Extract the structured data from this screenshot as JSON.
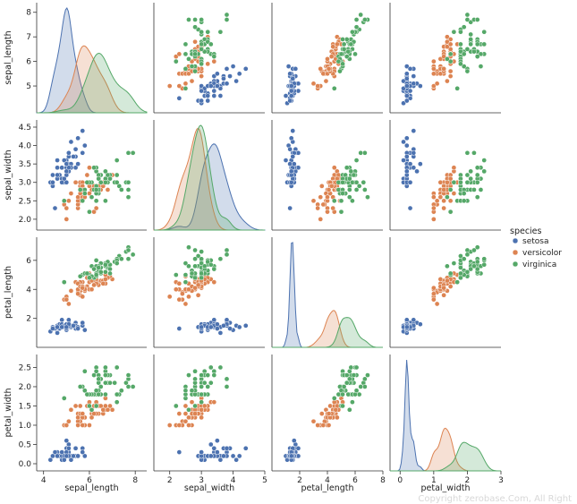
{
  "watermark": "Copyright zerobase.Com, All Right",
  "chart_data": {
    "type": "scatter",
    "variables": [
      "sepal_length",
      "sepal_width",
      "petal_length",
      "petal_width"
    ],
    "ranges": {
      "sepal_length": [
        4.2,
        8.1
      ],
      "sepal_width": [
        1.9,
        4.5
      ],
      "petal_length": [
        0.5,
        7.1
      ],
      "petal_width": [
        0.0,
        2.65
      ]
    },
    "ticks": {
      "sepal_length": [
        4,
        6,
        8
      ],
      "sepal_width": [
        2,
        3,
        4,
        5
      ],
      "petal_length": [
        2,
        4,
        6,
        8
      ],
      "petal_width": [
        0,
        1,
        2,
        3
      ]
    },
    "yticks": {
      "sepal_length": [
        5,
        6,
        7,
        8
      ],
      "sepal_width": [
        2.0,
        2.5,
        3.0,
        3.5,
        4.0,
        4.5
      ],
      "petal_length": [
        2,
        4,
        6
      ],
      "petal_width": [
        0.0,
        0.5,
        1.0,
        1.5,
        2.0,
        2.5
      ]
    },
    "xlim_bottom": {
      "sepal_length": [
        3.7,
        8.5
      ],
      "sepal_width": [
        1.5,
        5.0
      ],
      "petal_length": [
        0.0,
        8.0
      ],
      "petal_width": [
        -0.3,
        3.0
      ]
    },
    "diagonal": "kde",
    "legend": {
      "title": "species",
      "position": "right",
      "entries": [
        {
          "label": "setosa",
          "color": "#4c72b0"
        },
        {
          "label": "versicolor",
          "color": "#dd8452"
        },
        {
          "label": "virginica",
          "color": "#55a868"
        }
      ]
    },
    "series": [
      {
        "name": "setosa",
        "color": "#4c72b0",
        "points": [
          [
            5.1,
            3.5,
            1.4,
            0.2
          ],
          [
            4.9,
            3.0,
            1.4,
            0.2
          ],
          [
            4.7,
            3.2,
            1.3,
            0.2
          ],
          [
            4.6,
            3.1,
            1.5,
            0.2
          ],
          [
            5.0,
            3.6,
            1.4,
            0.2
          ],
          [
            5.4,
            3.9,
            1.7,
            0.4
          ],
          [
            4.6,
            3.4,
            1.4,
            0.3
          ],
          [
            5.0,
            3.4,
            1.5,
            0.2
          ],
          [
            4.4,
            2.9,
            1.4,
            0.2
          ],
          [
            4.9,
            3.1,
            1.5,
            0.1
          ],
          [
            5.4,
            3.7,
            1.5,
            0.2
          ],
          [
            4.8,
            3.4,
            1.6,
            0.2
          ],
          [
            4.8,
            3.0,
            1.4,
            0.1
          ],
          [
            4.3,
            3.0,
            1.1,
            0.1
          ],
          [
            5.8,
            4.0,
            1.2,
            0.2
          ],
          [
            5.7,
            4.4,
            1.5,
            0.4
          ],
          [
            5.4,
            3.9,
            1.3,
            0.4
          ],
          [
            5.1,
            3.5,
            1.4,
            0.3
          ],
          [
            5.7,
            3.8,
            1.7,
            0.3
          ],
          [
            5.1,
            3.8,
            1.5,
            0.3
          ],
          [
            5.4,
            3.4,
            1.7,
            0.2
          ],
          [
            5.1,
            3.7,
            1.5,
            0.4
          ],
          [
            4.6,
            3.6,
            1.0,
            0.2
          ],
          [
            5.1,
            3.3,
            1.7,
            0.5
          ],
          [
            4.8,
            3.4,
            1.9,
            0.2
          ],
          [
            5.0,
            3.0,
            1.6,
            0.2
          ],
          [
            5.0,
            3.4,
            1.6,
            0.4
          ],
          [
            5.2,
            3.5,
            1.5,
            0.2
          ],
          [
            5.2,
            3.4,
            1.4,
            0.2
          ],
          [
            4.7,
            3.2,
            1.6,
            0.2
          ],
          [
            4.8,
            3.1,
            1.6,
            0.2
          ],
          [
            5.4,
            3.4,
            1.5,
            0.4
          ],
          [
            5.2,
            4.1,
            1.5,
            0.1
          ],
          [
            5.5,
            4.2,
            1.4,
            0.2
          ],
          [
            4.9,
            3.1,
            1.5,
            0.2
          ],
          [
            5.0,
            3.2,
            1.2,
            0.2
          ],
          [
            5.5,
            3.5,
            1.3,
            0.2
          ],
          [
            4.9,
            3.6,
            1.4,
            0.1
          ],
          [
            4.4,
            3.0,
            1.3,
            0.2
          ],
          [
            5.1,
            3.4,
            1.5,
            0.2
          ],
          [
            5.0,
            3.5,
            1.3,
            0.3
          ],
          [
            4.5,
            2.3,
            1.3,
            0.3
          ],
          [
            4.4,
            3.2,
            1.3,
            0.2
          ],
          [
            5.0,
            3.5,
            1.6,
            0.6
          ],
          [
            5.1,
            3.8,
            1.9,
            0.4
          ],
          [
            4.8,
            3.0,
            1.4,
            0.3
          ],
          [
            5.1,
            3.8,
            1.6,
            0.2
          ],
          [
            4.6,
            3.2,
            1.4,
            0.2
          ],
          [
            5.3,
            3.7,
            1.5,
            0.2
          ],
          [
            5.0,
            3.3,
            1.4,
            0.2
          ]
        ]
      },
      {
        "name": "versicolor",
        "color": "#dd8452",
        "points": [
          [
            7.0,
            3.2,
            4.7,
            1.4
          ],
          [
            6.4,
            3.2,
            4.5,
            1.5
          ],
          [
            6.9,
            3.1,
            4.9,
            1.5
          ],
          [
            5.5,
            2.3,
            4.0,
            1.3
          ],
          [
            6.5,
            2.8,
            4.6,
            1.5
          ],
          [
            5.7,
            2.8,
            4.5,
            1.3
          ],
          [
            6.3,
            3.3,
            4.7,
            1.6
          ],
          [
            4.9,
            2.4,
            3.3,
            1.0
          ],
          [
            6.6,
            2.9,
            4.6,
            1.3
          ],
          [
            5.2,
            2.7,
            3.9,
            1.4
          ],
          [
            5.0,
            2.0,
            3.5,
            1.0
          ],
          [
            5.9,
            3.0,
            4.2,
            1.5
          ],
          [
            6.0,
            2.2,
            4.0,
            1.0
          ],
          [
            6.1,
            2.9,
            4.7,
            1.4
          ],
          [
            5.6,
            2.9,
            3.6,
            1.3
          ],
          [
            6.7,
            3.1,
            4.4,
            1.4
          ],
          [
            5.6,
            3.0,
            4.5,
            1.5
          ],
          [
            5.8,
            2.7,
            4.1,
            1.0
          ],
          [
            6.2,
            2.2,
            4.5,
            1.5
          ],
          [
            5.6,
            2.5,
            3.9,
            1.1
          ],
          [
            5.9,
            3.2,
            4.8,
            1.8
          ],
          [
            6.1,
            2.8,
            4.0,
            1.3
          ],
          [
            6.3,
            2.5,
            4.9,
            1.5
          ],
          [
            6.1,
            2.8,
            4.7,
            1.2
          ],
          [
            6.4,
            2.9,
            4.3,
            1.3
          ],
          [
            6.6,
            3.0,
            4.4,
            1.4
          ],
          [
            6.8,
            2.8,
            4.8,
            1.4
          ],
          [
            6.7,
            3.0,
            5.0,
            1.7
          ],
          [
            6.0,
            2.9,
            4.5,
            1.5
          ],
          [
            5.7,
            2.6,
            3.5,
            1.0
          ],
          [
            5.5,
            2.4,
            3.8,
            1.1
          ],
          [
            5.5,
            2.4,
            3.7,
            1.0
          ],
          [
            5.8,
            2.7,
            3.9,
            1.2
          ],
          [
            6.0,
            2.7,
            5.1,
            1.6
          ],
          [
            5.4,
            3.0,
            4.5,
            1.5
          ],
          [
            6.0,
            3.4,
            4.5,
            1.6
          ],
          [
            6.7,
            3.1,
            4.7,
            1.5
          ],
          [
            6.3,
            2.3,
            4.4,
            1.3
          ],
          [
            5.6,
            3.0,
            4.1,
            1.3
          ],
          [
            5.5,
            2.5,
            4.0,
            1.3
          ],
          [
            5.5,
            2.6,
            4.4,
            1.2
          ],
          [
            6.1,
            3.0,
            4.6,
            1.4
          ],
          [
            5.8,
            2.6,
            4.0,
            1.2
          ],
          [
            5.0,
            2.3,
            3.3,
            1.0
          ],
          [
            5.6,
            2.7,
            4.2,
            1.3
          ],
          [
            5.7,
            3.0,
            4.2,
            1.2
          ],
          [
            5.7,
            2.9,
            4.2,
            1.3
          ],
          [
            6.2,
            2.9,
            4.3,
            1.3
          ],
          [
            5.1,
            2.5,
            3.0,
            1.1
          ],
          [
            5.7,
            2.8,
            4.1,
            1.3
          ]
        ]
      },
      {
        "name": "virginica",
        "color": "#55a868",
        "points": [
          [
            6.3,
            3.3,
            6.0,
            2.5
          ],
          [
            5.8,
            2.7,
            5.1,
            1.9
          ],
          [
            7.1,
            3.0,
            5.9,
            2.1
          ],
          [
            6.3,
            2.9,
            5.6,
            1.8
          ],
          [
            6.5,
            3.0,
            5.8,
            2.2
          ],
          [
            7.6,
            3.0,
            6.6,
            2.1
          ],
          [
            4.9,
            2.5,
            4.5,
            1.7
          ],
          [
            7.3,
            2.9,
            6.3,
            1.8
          ],
          [
            6.7,
            2.5,
            5.8,
            1.8
          ],
          [
            7.2,
            3.6,
            6.1,
            2.5
          ],
          [
            6.5,
            3.2,
            5.1,
            2.0
          ],
          [
            6.4,
            2.7,
            5.3,
            1.9
          ],
          [
            6.8,
            3.0,
            5.5,
            2.1
          ],
          [
            5.7,
            2.5,
            5.0,
            2.0
          ],
          [
            5.8,
            2.8,
            5.1,
            2.4
          ],
          [
            6.4,
            3.2,
            5.3,
            2.3
          ],
          [
            6.5,
            3.0,
            5.5,
            1.8
          ],
          [
            7.7,
            3.8,
            6.7,
            2.2
          ],
          [
            7.7,
            2.6,
            6.9,
            2.3
          ],
          [
            6.0,
            2.2,
            5.0,
            1.5
          ],
          [
            6.9,
            3.2,
            5.7,
            2.3
          ],
          [
            5.6,
            2.8,
            4.9,
            2.0
          ],
          [
            7.7,
            2.8,
            6.7,
            2.0
          ],
          [
            6.3,
            2.7,
            4.9,
            1.8
          ],
          [
            6.7,
            3.3,
            5.7,
            2.1
          ],
          [
            7.2,
            3.2,
            6.0,
            1.8
          ],
          [
            6.2,
            2.8,
            4.8,
            1.8
          ],
          [
            6.1,
            3.0,
            4.9,
            1.8
          ],
          [
            6.4,
            2.8,
            5.6,
            2.1
          ],
          [
            7.2,
            3.0,
            5.8,
            1.6
          ],
          [
            7.4,
            2.8,
            6.1,
            1.9
          ],
          [
            7.9,
            3.8,
            6.4,
            2.0
          ],
          [
            6.4,
            2.8,
            5.6,
            2.2
          ],
          [
            6.3,
            2.8,
            5.1,
            1.5
          ],
          [
            6.1,
            2.6,
            5.6,
            1.4
          ],
          [
            7.7,
            3.0,
            6.1,
            2.3
          ],
          [
            6.3,
            3.4,
            5.6,
            2.4
          ],
          [
            6.4,
            3.1,
            5.5,
            1.8
          ],
          [
            6.0,
            3.0,
            4.8,
            1.8
          ],
          [
            6.9,
            3.1,
            5.4,
            2.1
          ],
          [
            6.7,
            3.1,
            5.6,
            2.4
          ],
          [
            6.9,
            3.1,
            5.1,
            2.3
          ],
          [
            5.8,
            2.7,
            5.1,
            1.9
          ],
          [
            6.8,
            3.2,
            5.9,
            2.3
          ],
          [
            6.7,
            3.3,
            5.7,
            2.5
          ],
          [
            6.7,
            3.0,
            5.2,
            2.3
          ],
          [
            6.3,
            2.5,
            5.0,
            1.9
          ],
          [
            6.5,
            3.0,
            5.2,
            2.0
          ],
          [
            6.2,
            3.4,
            5.4,
            2.3
          ],
          [
            5.9,
            3.0,
            5.1,
            1.8
          ]
        ]
      }
    ]
  }
}
